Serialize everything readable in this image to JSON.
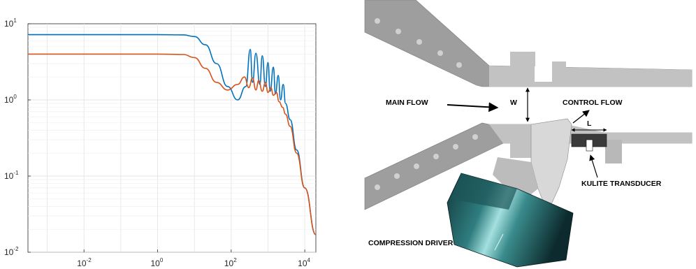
{
  "chart_data": {
    "type": "line",
    "title": "",
    "xlabel": "",
    "ylabel": "",
    "xscale": "log",
    "yscale": "log",
    "xlim": [
      0.0003,
      20000
    ],
    "ylim": [
      0.01,
      10
    ],
    "grid": true,
    "colors": [
      "#0072BD",
      "#D95319"
    ],
    "x_ticks": [
      {
        "base": "10",
        "exp": "-2",
        "value": 0.01
      },
      {
        "base": "10",
        "exp": "0",
        "value": 1
      },
      {
        "base": "10",
        "exp": "2",
        "value": 100
      },
      {
        "base": "10",
        "exp": "4",
        "value": 10000
      }
    ],
    "y_ticks": [
      {
        "base": "10",
        "exp": "-2",
        "value": 0.01
      },
      {
        "base": "10",
        "exp": "-1",
        "value": 0.1
      },
      {
        "base": "10",
        "exp": "0",
        "value": 1
      },
      {
        "base": "10",
        "exp": "1",
        "value": 10
      }
    ],
    "series": [
      {
        "color": "#0072BD",
        "x": [
          0.0003,
          1,
          5,
          10,
          20,
          40,
          80,
          150,
          250,
          330,
          380,
          470,
          600,
          700,
          850,
          1000,
          1150,
          1400,
          1600,
          1900,
          2200,
          2600,
          3000,
          4000,
          6000,
          10000,
          20000
        ],
        "y": [
          7.2,
          7.2,
          7.15,
          6.8,
          5.3,
          3.0,
          1.5,
          1.0,
          1.5,
          4.6,
          1.7,
          4.1,
          1.6,
          3.8,
          1.5,
          3.1,
          1.3,
          2.7,
          1.2,
          2.1,
          1.0,
          1.6,
          0.9,
          0.55,
          0.22,
          0.07,
          0.017
        ]
      },
      {
        "color": "#D95319",
        "x": [
          0.0003,
          1,
          5,
          10,
          20,
          40,
          80,
          150,
          230,
          300,
          380,
          470,
          560,
          700,
          850,
          1000,
          1200,
          1400,
          1700,
          2000,
          2500,
          3000,
          4000,
          6000,
          10000,
          20000
        ],
        "y": [
          4.0,
          4.0,
          3.95,
          3.6,
          2.6,
          1.7,
          1.35,
          1.6,
          2.0,
          1.45,
          1.95,
          1.35,
          1.8,
          1.3,
          1.7,
          1.25,
          1.45,
          1.15,
          1.25,
          0.95,
          0.8,
          0.65,
          0.45,
          0.2,
          0.07,
          0.017
        ]
      }
    ]
  },
  "labels": {
    "main_flow": "MAIN FLOW",
    "w": "W",
    "control_flow": "CONTROL FLOW",
    "l": "L",
    "kulite": "KULITE TRANSDUCER",
    "driver": "COMPRESSION DRIVER"
  }
}
